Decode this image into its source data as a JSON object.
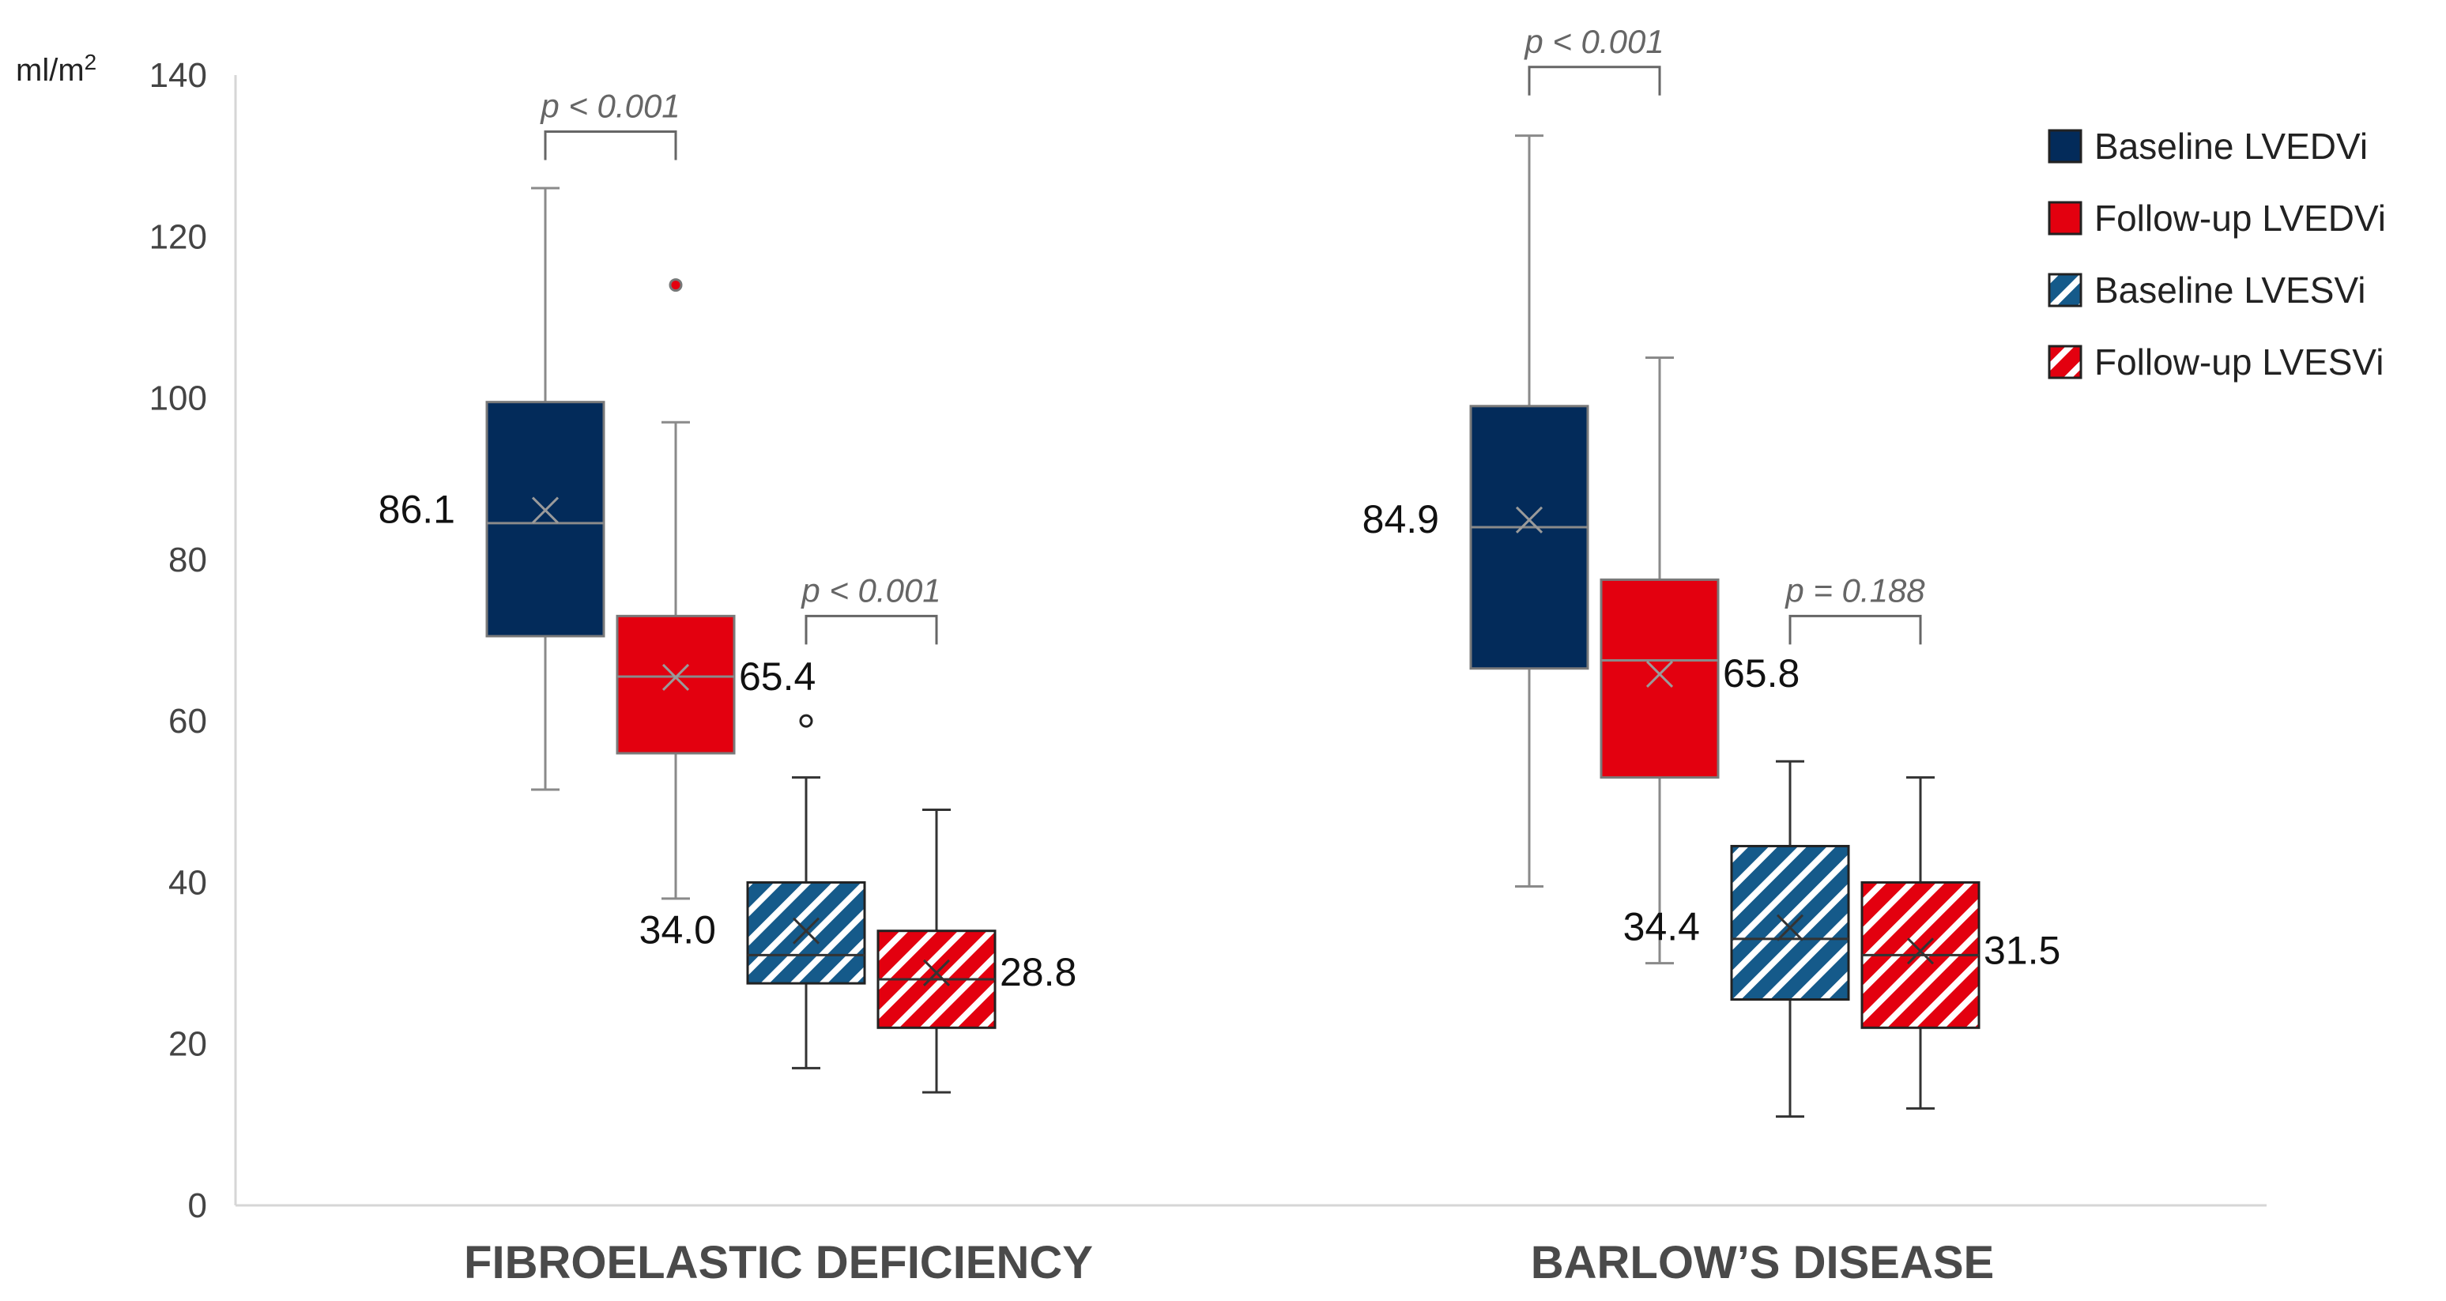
{
  "chart_data": {
    "type": "boxplot",
    "y_unit_label": "ml/m",
    "y_unit_sup": "2",
    "ylim": [
      0,
      140
    ],
    "yticks": [
      0,
      20,
      40,
      60,
      80,
      100,
      120,
      140
    ],
    "categories": [
      "FIBROELASTIC DEFICIENCY",
      "BARLOW’S DISEASE"
    ],
    "series": [
      {
        "name": "Baseline LVEDVi",
        "color": "#032b5a",
        "pattern": "solid"
      },
      {
        "name": "Follow-up LVEDVi",
        "color": "#e3000f",
        "pattern": "solid"
      },
      {
        "name": "Baseline LVESVi",
        "color": "#155a8a",
        "pattern": "hatch"
      },
      {
        "name": "Follow-up LVESVi",
        "color": "#e3000f",
        "pattern": "hatch"
      }
    ],
    "boxes": [
      {
        "category": 0,
        "series": 0,
        "min": 51.5,
        "q1": 70.5,
        "median": 84.5,
        "q3": 99.5,
        "max": 126,
        "mean": 86.1,
        "mean_label": "86.1",
        "label_side": "left",
        "outliers": []
      },
      {
        "category": 0,
        "series": 1,
        "min": 38,
        "q1": 56,
        "median": 65.5,
        "q3": 73,
        "max": 97,
        "mean": 65.4,
        "mean_label": "65.4",
        "label_side": "right",
        "outliers": [
          114
        ]
      },
      {
        "category": 0,
        "series": 2,
        "min": 17,
        "q1": 27.5,
        "median": 31,
        "q3": 40,
        "max": 53,
        "mean": 34.0,
        "mean_label": "34.0",
        "label_side": "left",
        "outliers": [
          60
        ]
      },
      {
        "category": 0,
        "series": 3,
        "min": 14,
        "q1": 22,
        "median": 28,
        "q3": 34,
        "max": 49,
        "mean": 28.8,
        "mean_label": "28.8",
        "label_side": "right",
        "outliers": []
      },
      {
        "category": 1,
        "series": 0,
        "min": 39.5,
        "q1": 66.5,
        "median": 84,
        "q3": 99,
        "max": 132.5,
        "mean": 84.9,
        "mean_label": "84.9",
        "label_side": "left",
        "outliers": []
      },
      {
        "category": 1,
        "series": 1,
        "min": 30,
        "q1": 53,
        "median": 67.5,
        "q3": 77.5,
        "max": 105,
        "mean": 65.8,
        "mean_label": "65.8",
        "label_side": "right",
        "outliers": []
      },
      {
        "category": 1,
        "series": 2,
        "min": 11,
        "q1": 25.5,
        "median": 33,
        "q3": 44.5,
        "max": 55,
        "mean": 34.4,
        "mean_label": "34.4",
        "label_side": "left",
        "outliers": []
      },
      {
        "category": 1,
        "series": 3,
        "min": 12,
        "q1": 22,
        "median": 31,
        "q3": 40,
        "max": 53,
        "mean": 31.5,
        "mean_label": "31.5",
        "label_side": "right",
        "outliers": []
      }
    ],
    "comparisons": [
      {
        "category": 0,
        "from_series": 0,
        "to_series": 1,
        "y": 133,
        "label": "p < 0.001"
      },
      {
        "category": 0,
        "from_series": 2,
        "to_series": 3,
        "y": 73,
        "label": "p < 0.001"
      },
      {
        "category": 1,
        "from_series": 0,
        "to_series": 1,
        "y": 141,
        "label": "p < 0.001"
      },
      {
        "category": 1,
        "from_series": 2,
        "to_series": 3,
        "y": 73,
        "label": "p = 0.188"
      }
    ],
    "legend_position": "top-right"
  }
}
